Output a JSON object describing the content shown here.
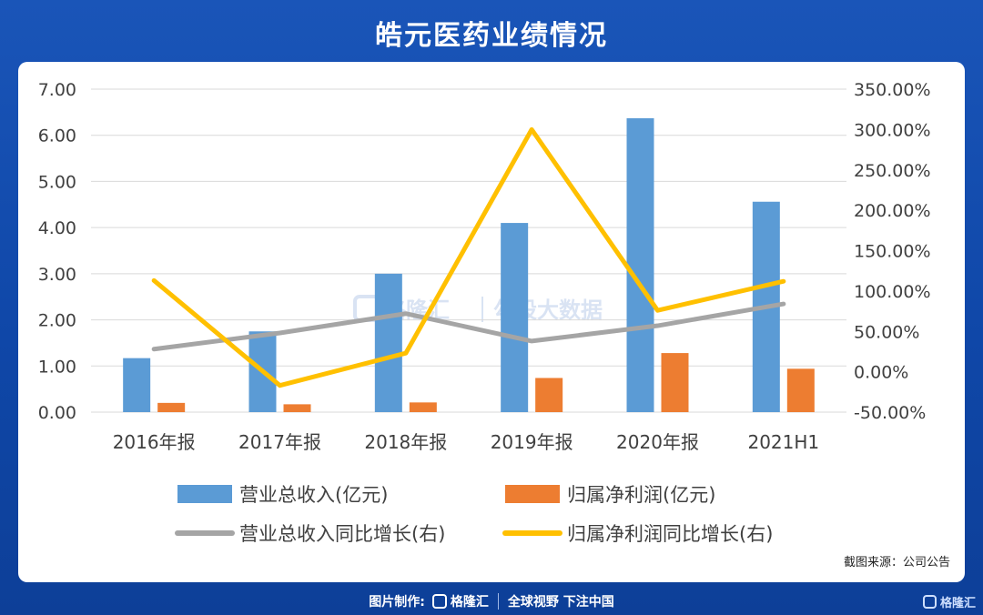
{
  "page": {
    "title": "皓元医药业绩情况",
    "source_note": "截图来源：公司公告",
    "footer_credit_label": "图片制作:",
    "footer_brand": "格隆汇",
    "footer_slogan": "全球视野 下注中国",
    "watermark_brand": "格隆汇",
    "watermark_text": "勾股大数据",
    "corner_brand": "格隆汇"
  },
  "colors": {
    "revenue_bar": "#5b9bd5",
    "profit_bar": "#ed7d31",
    "revenue_growth_line": "#a5a5a5",
    "profit_growth_line": "#ffc000"
  },
  "chart_data": {
    "type": "bar",
    "categories": [
      "2016年报",
      "2017年报",
      "2018年报",
      "2019年报",
      "2020年报",
      "2021H1"
    ],
    "left_axis": {
      "ylim": [
        0,
        7
      ],
      "ticks": [
        "0.00",
        "1.00",
        "2.00",
        "3.00",
        "4.00",
        "5.00",
        "6.00",
        "7.00"
      ]
    },
    "right_axis": {
      "ylim": [
        -50,
        350
      ],
      "ticks": [
        "-50.00%",
        "0.00%",
        "50.00%",
        "100.00%",
        "150.00%",
        "200.00%",
        "250.00%",
        "300.00%",
        "350.00%"
      ]
    },
    "series": [
      {
        "name": "营业总收入(亿元)",
        "type": "bar",
        "axis": "left",
        "values": [
          1.17,
          1.75,
          3.0,
          4.1,
          6.37,
          4.56
        ]
      },
      {
        "name": "归属净利润(亿元)",
        "type": "bar",
        "axis": "left",
        "values": [
          0.2,
          0.17,
          0.21,
          0.74,
          1.28,
          0.94
        ]
      },
      {
        "name": "营业总收入同比增长(右)",
        "type": "line",
        "axis": "right",
        "values": [
          28,
          48,
          72,
          38,
          57,
          84
        ]
      },
      {
        "name": "归属净利润同比增长(右)",
        "type": "line",
        "axis": "right",
        "values": [
          113,
          -17,
          23,
          300,
          76,
          112
        ]
      }
    ],
    "grid": true,
    "legend_position": "bottom"
  }
}
